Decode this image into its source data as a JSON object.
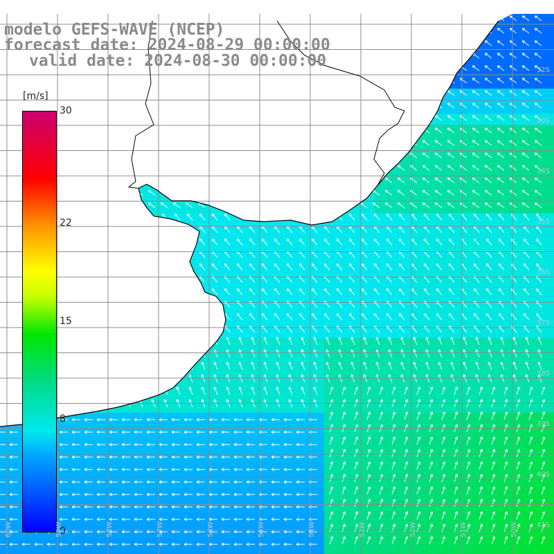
{
  "title": {
    "line1": "modelo GEFS-WAVE (NCEP)",
    "line2": "forecast date: 2024-08-29 00:00:00",
    "line3": "valid date: 2024-08-30 00:00:00"
  },
  "colorbar": {
    "unit": "[m/s]",
    "ticks": [
      {
        "label": "30",
        "value": 30
      },
      {
        "label": "22",
        "value": 22
      },
      {
        "label": "15",
        "value": 15
      },
      {
        "label": "8",
        "value": 8
      },
      {
        "label": "0",
        "value": 0
      }
    ],
    "min": 0,
    "max": 30
  },
  "latitude_labels": [
    "32S",
    "33S",
    "34S",
    "35S",
    "36S",
    "37S",
    "38S",
    "39S",
    "40S",
    "41S"
  ],
  "longitude_labels": [
    "60W",
    "59W",
    "58W",
    "57W",
    "56W",
    "55W",
    "54W",
    "53W",
    "52W",
    "51W",
    "50W"
  ],
  "colors": {
    "land": "#ffffff",
    "coast": "#000000",
    "grid": "#8c8c8c",
    "arrow": "#ffffff",
    "title": "#8a8a8a"
  }
}
